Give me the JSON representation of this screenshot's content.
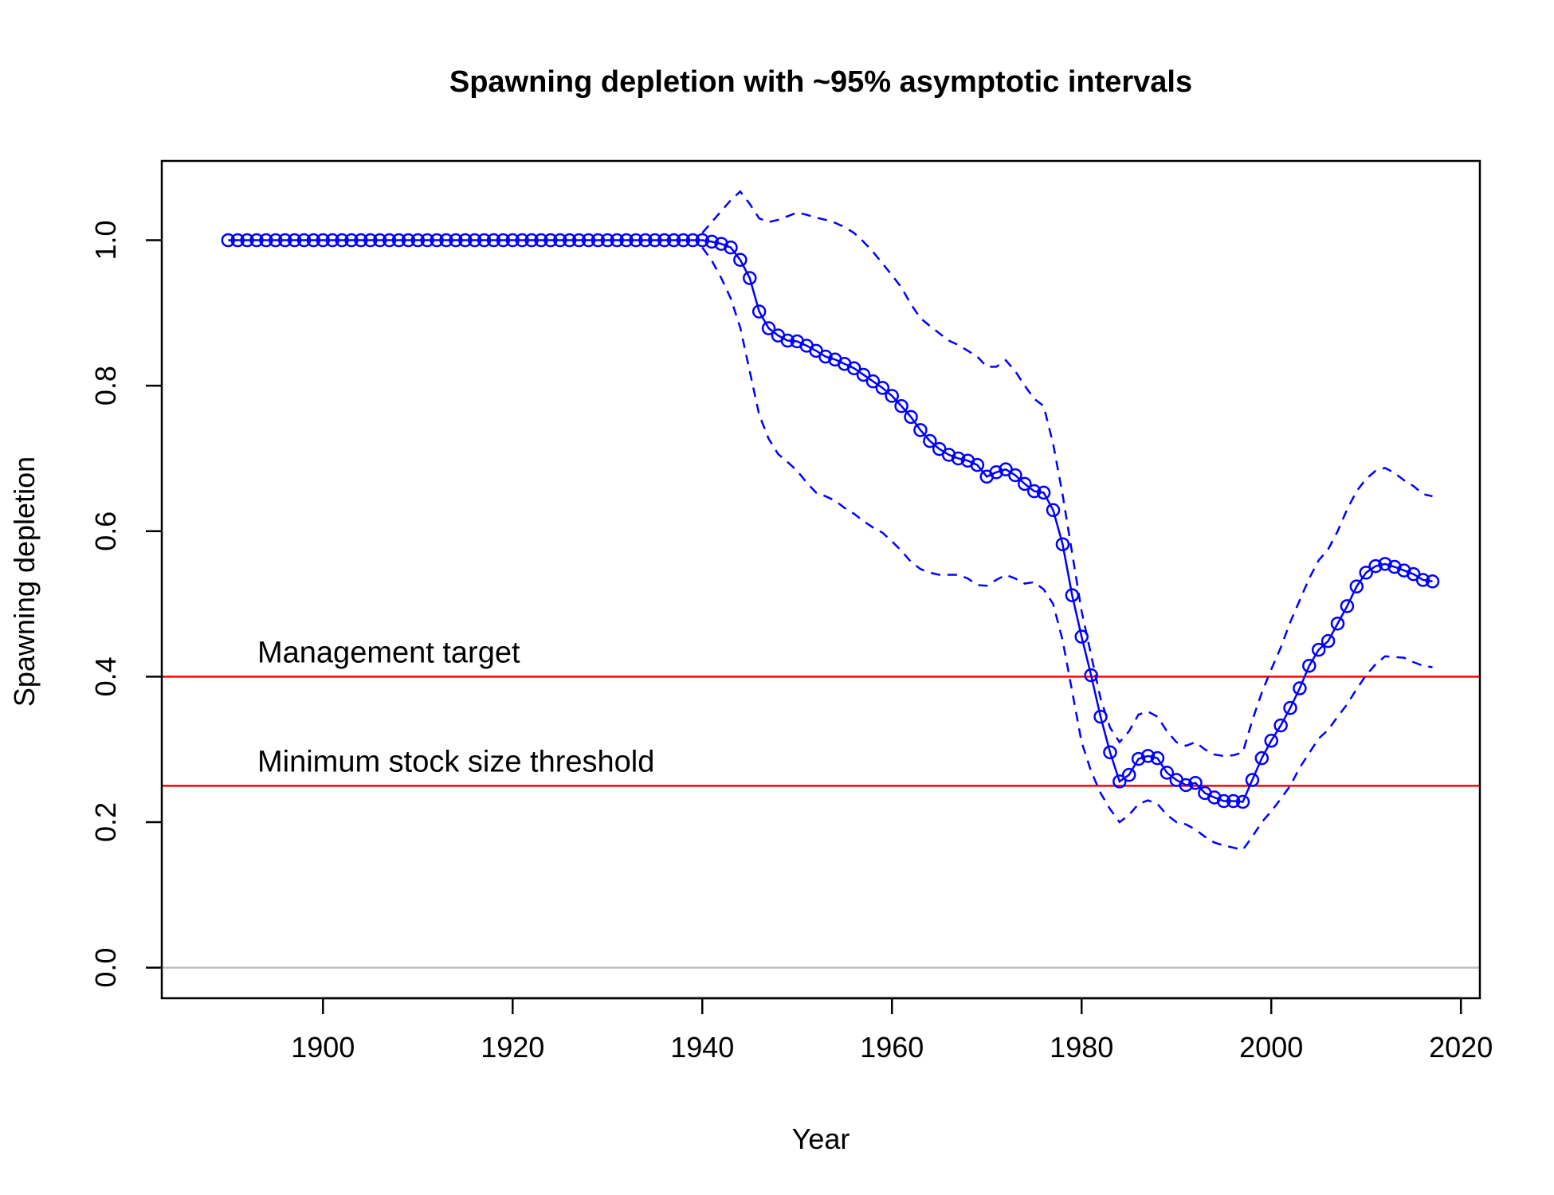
{
  "chart_data": {
    "type": "line",
    "title": "Spawning depletion with ~95% asymptotic intervals",
    "xlabel": "Year",
    "ylabel": "Spawning depletion",
    "xlim": [
      1883,
      2022
    ],
    "ylim": [
      -0.042,
      1.109
    ],
    "x_ticks": [
      1900,
      1920,
      1940,
      1960,
      1980,
      2000,
      2020
    ],
    "x_tick_labels": [
      "1900",
      "1920",
      "1940",
      "1960",
      "1980",
      "2000",
      "2020"
    ],
    "y_ticks": [
      0.0,
      0.2,
      0.4,
      0.6,
      0.8,
      1.0
    ],
    "y_tick_labels": [
      "0.0",
      "0.2",
      "0.4",
      "0.6",
      "0.8",
      "1.0"
    ],
    "grid": false,
    "colors": {
      "series": "#0000ff",
      "reference": "#ff0000",
      "zero_line": "#bebebe",
      "axes": "#000000"
    },
    "series": [
      {
        "role": "estimate",
        "line_style": "solid",
        "markers": "open-circle",
        "x": [
          1890,
          1891,
          1892,
          1893,
          1894,
          1895,
          1896,
          1897,
          1898,
          1899,
          1900,
          1901,
          1902,
          1903,
          1904,
          1905,
          1906,
          1907,
          1908,
          1909,
          1910,
          1911,
          1912,
          1913,
          1914,
          1915,
          1916,
          1917,
          1918,
          1919,
          1920,
          1921,
          1922,
          1923,
          1924,
          1925,
          1926,
          1927,
          1928,
          1929,
          1930,
          1931,
          1932,
          1933,
          1934,
          1935,
          1936,
          1937,
          1938,
          1939,
          1940,
          1941,
          1942,
          1943,
          1944,
          1945,
          1946,
          1947,
          1948,
          1949,
          1950,
          1951,
          1952,
          1953,
          1954,
          1955,
          1956,
          1957,
          1958,
          1959,
          1960,
          1961,
          1962,
          1963,
          1964,
          1965,
          1966,
          1967,
          1968,
          1969,
          1970,
          1971,
          1972,
          1973,
          1974,
          1975,
          1976,
          1977,
          1978,
          1979,
          1980,
          1981,
          1982,
          1983,
          1984,
          1985,
          1986,
          1987,
          1988,
          1989,
          1990,
          1991,
          1992,
          1993,
          1994,
          1995,
          1996,
          1997,
          1998,
          1999,
          2000,
          2001,
          2002,
          2003,
          2004,
          2005,
          2006,
          2007,
          2008,
          2009,
          2010,
          2011,
          2012,
          2013,
          2014,
          2015,
          2016,
          2017
        ],
        "values": [
          1.0,
          1.0,
          1.0,
          1.0,
          1.0,
          1.0,
          1.0,
          1.0,
          1.0,
          1.0,
          1.0,
          1.0,
          1.0,
          1.0,
          1.0,
          1.0,
          1.0,
          1.0,
          1.0,
          1.0,
          1.0,
          1.0,
          1.0,
          1.0,
          1.0,
          1.0,
          1.0,
          1.0,
          1.0,
          1.0,
          1.0,
          1.0,
          1.0,
          1.0,
          1.0,
          1.0,
          1.0,
          1.0,
          1.0,
          1.0,
          1.0,
          1.0,
          1.0,
          1.0,
          1.0,
          1.0,
          1.0,
          1.0,
          1.0,
          1.0,
          1.0,
          0.998,
          0.995,
          0.99,
          0.973,
          0.948,
          0.902,
          0.879,
          0.869,
          0.862,
          0.861,
          0.855,
          0.848,
          0.84,
          0.836,
          0.83,
          0.824,
          0.815,
          0.806,
          0.797,
          0.786,
          0.772,
          0.757,
          0.739,
          0.724,
          0.713,
          0.705,
          0.7,
          0.697,
          0.691,
          0.675,
          0.681,
          0.685,
          0.677,
          0.665,
          0.655,
          0.653,
          0.629,
          0.582,
          0.512,
          0.455,
          0.402,
          0.345,
          0.296,
          0.256,
          0.265,
          0.287,
          0.291,
          0.288,
          0.268,
          0.258,
          0.251,
          0.254,
          0.24,
          0.234,
          0.229,
          0.229,
          0.228,
          0.258,
          0.288,
          0.312,
          0.333,
          0.357,
          0.384,
          0.415,
          0.437,
          0.449,
          0.473,
          0.497,
          0.524,
          0.543,
          0.552,
          0.555,
          0.551,
          0.546,
          0.541,
          0.533,
          0.531
        ]
      },
      {
        "role": "upper-interval",
        "line_style": "dashed",
        "x": [
          1940,
          1941,
          1942,
          1943,
          1944,
          1945,
          1946,
          1947,
          1948,
          1949,
          1950,
          1951,
          1952,
          1953,
          1954,
          1955,
          1956,
          1957,
          1958,
          1959,
          1960,
          1961,
          1962,
          1963,
          1964,
          1965,
          1966,
          1967,
          1968,
          1969,
          1970,
          1971,
          1972,
          1973,
          1974,
          1975,
          1976,
          1977,
          1978,
          1979,
          1980,
          1981,
          1982,
          1983,
          1984,
          1985,
          1986,
          1987,
          1988,
          1989,
          1990,
          1991,
          1992,
          1993,
          1994,
          1995,
          1996,
          1997,
          1998,
          1999,
          2000,
          2001,
          2002,
          2003,
          2004,
          2005,
          2006,
          2007,
          2008,
          2009,
          2010,
          2011,
          2012,
          2013,
          2014,
          2015,
          2016,
          2017
        ],
        "values": [
          1.01,
          1.025,
          1.04,
          1.055,
          1.067,
          1.05,
          1.03,
          1.025,
          1.028,
          1.033,
          1.038,
          1.035,
          1.031,
          1.028,
          1.024,
          1.018,
          1.01,
          0.998,
          0.984,
          0.968,
          0.952,
          0.935,
          0.912,
          0.893,
          0.882,
          0.872,
          0.862,
          0.856,
          0.848,
          0.84,
          0.826,
          0.826,
          0.835,
          0.82,
          0.8,
          0.782,
          0.772,
          0.72,
          0.65,
          0.57,
          0.49,
          0.43,
          0.37,
          0.33,
          0.31,
          0.325,
          0.348,
          0.352,
          0.345,
          0.325,
          0.31,
          0.305,
          0.31,
          0.3,
          0.293,
          0.291,
          0.292,
          0.296,
          0.34,
          0.378,
          0.41,
          0.44,
          0.475,
          0.505,
          0.535,
          0.56,
          0.575,
          0.6,
          0.63,
          0.655,
          0.672,
          0.683,
          0.687,
          0.68,
          0.67,
          0.662,
          0.651,
          0.648
        ]
      },
      {
        "role": "lower-interval",
        "line_style": "dashed",
        "x": [
          1940,
          1941,
          1942,
          1943,
          1944,
          1945,
          1946,
          1947,
          1948,
          1949,
          1950,
          1951,
          1952,
          1953,
          1954,
          1955,
          1956,
          1957,
          1958,
          1959,
          1960,
          1961,
          1962,
          1963,
          1964,
          1965,
          1966,
          1967,
          1968,
          1969,
          1970,
          1971,
          1972,
          1973,
          1974,
          1975,
          1976,
          1977,
          1978,
          1979,
          1980,
          1981,
          1982,
          1983,
          1984,
          1985,
          1986,
          1987,
          1988,
          1989,
          1990,
          1991,
          1992,
          1993,
          1994,
          1995,
          1996,
          1997,
          1998,
          1999,
          2000,
          2001,
          2002,
          2003,
          2004,
          2005,
          2006,
          2007,
          2008,
          2009,
          2010,
          2011,
          2012,
          2013,
          2014,
          2015,
          2016,
          2017
        ],
        "values": [
          0.99,
          0.972,
          0.948,
          0.92,
          0.88,
          0.82,
          0.76,
          0.727,
          0.706,
          0.695,
          0.683,
          0.667,
          0.653,
          0.648,
          0.642,
          0.632,
          0.624,
          0.614,
          0.605,
          0.598,
          0.586,
          0.573,
          0.558,
          0.548,
          0.543,
          0.54,
          0.54,
          0.54,
          0.535,
          0.526,
          0.525,
          0.533,
          0.54,
          0.535,
          0.528,
          0.53,
          0.52,
          0.5,
          0.45,
          0.38,
          0.31,
          0.27,
          0.24,
          0.218,
          0.2,
          0.21,
          0.225,
          0.23,
          0.225,
          0.21,
          0.2,
          0.197,
          0.19,
          0.18,
          0.172,
          0.168,
          0.165,
          0.162,
          0.18,
          0.2,
          0.215,
          0.232,
          0.25,
          0.275,
          0.295,
          0.315,
          0.327,
          0.345,
          0.362,
          0.383,
          0.402,
          0.417,
          0.428,
          0.427,
          0.426,
          0.42,
          0.415,
          0.413
        ]
      }
    ],
    "reference_lines": [
      {
        "y": 0.4,
        "label": "Management target"
      },
      {
        "y": 0.25,
        "label": "Minimum stock size threshold"
      },
      {
        "y": 0.0,
        "label": ""
      }
    ]
  }
}
